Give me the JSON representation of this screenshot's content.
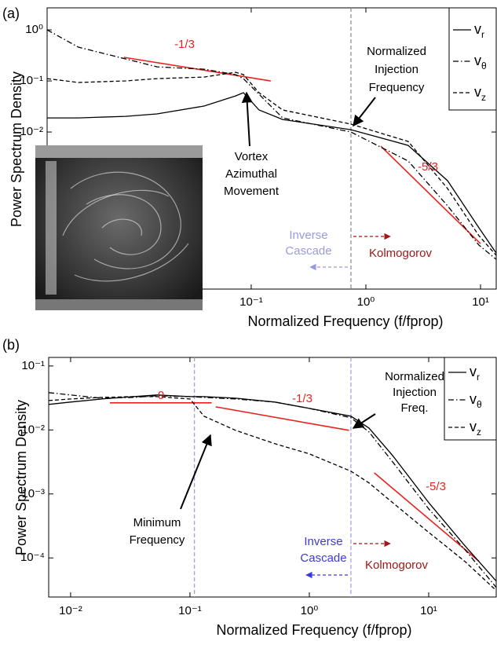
{
  "chart_data": [
    {
      "type": "line",
      "panel_label": "(a)",
      "y_label": "Power Spectrum Density",
      "x_label": "Normalized Frequency (f/fprop)",
      "log_x": true,
      "log_y": true,
      "xlim": [
        0.00166,
        13.7
      ],
      "ylim": [
        8.4e-06,
        2.7
      ],
      "xticks": [
        {
          "value": 0.1,
          "label": "10⁻¹"
        },
        {
          "value": 1,
          "label": "10⁰"
        },
        {
          "value": 10,
          "label": "10¹"
        }
      ],
      "yticks": [
        {
          "value": 1,
          "label": "10⁰"
        },
        {
          "value": 0.1,
          "label": "10⁻¹"
        },
        {
          "value": 0.01,
          "label": "10⁻²"
        }
      ],
      "x": [
        0.00166,
        0.00311,
        0.00802,
        0.0151,
        0.0388,
        0.073,
        0.0855,
        0.117,
        0.188,
        0.741,
        2.34,
        5.16,
        9.68,
        13.7
      ],
      "series": [
        {
          "name": "vr",
          "color": "#000000",
          "linestyle": "solid",
          "values": [
            0.0189,
            0.0189,
            0.0203,
            0.0226,
            0.0322,
            0.051,
            0.0588,
            0.027,
            0.0176,
            0.0111,
            0.00547,
            0.00111,
            0.000133,
            4.27e-05
          ]
        },
        {
          "name": "vθ",
          "color": "#000000",
          "linestyle": "dashdot",
          "values": [
            1,
            0.459,
            0.27,
            0.189,
            0.17,
            0.133,
            0.111,
            0.0548,
            0.0189,
            0.01,
            0.0027,
            0.000358,
            6.09e-05,
            3.22e-05
          ]
        },
        {
          "name": "vz",
          "color": "#000000",
          "linestyle": "dashed",
          "values": [
            0.111,
            0.0932,
            0.1,
            0.111,
            0.119,
            0.148,
            0.133,
            0.0588,
            0.027,
            0.0143,
            0.00653,
            0.00078,
            9.31e-05,
            3.85e-05
          ]
        }
      ],
      "guides": [
        {
          "label": "-1/3",
          "color": "#e8231f",
          "x": [
            0.00777,
            0.148
          ],
          "y": [
            0.29,
            0.1
          ]
        },
        {
          "label": "-5/3",
          "color": "#e8231f",
          "x": [
            1.35,
            10.0
          ],
          "y": [
            0.00528,
            6.5e-05
          ]
        }
      ],
      "reference_lines": [
        {
          "x": 0.741,
          "color": "#888888"
        }
      ],
      "annotations": [
        {
          "lines": [
            "Normalized",
            "Injection",
            "Frequency"
          ],
          "color": "#000000"
        },
        {
          "lines": [
            "Vortex",
            "Azimuthal",
            "Movement"
          ],
          "color": "#000000"
        },
        {
          "lines": [
            "Inverse",
            "Cascade"
          ],
          "color": "#9a9ade"
        },
        {
          "lines": [
            "Kolmogorov"
          ],
          "color": "#a01818"
        }
      ]
    },
    {
      "type": "line",
      "panel_label": "(b)",
      "y_label": "Power Spectrum Density",
      "x_label": "Normalized Frequency (f/fprop)",
      "log_x": true,
      "log_y": true,
      "xlim": [
        0.00655,
        36.8
      ],
      "ylim": [
        2.45e-05,
        0.136
      ],
      "xticks": [
        {
          "value": 0.01,
          "label": "10⁻²"
        },
        {
          "value": 0.1,
          "label": "10⁻¹"
        },
        {
          "value": 1,
          "label": "10⁰"
        },
        {
          "value": 10,
          "label": "10¹"
        }
      ],
      "yticks": [
        {
          "value": 0.1,
          "label": "10⁻¹"
        },
        {
          "value": 0.01,
          "label": "10⁻²"
        },
        {
          "value": 0.001,
          "label": "10⁻³"
        },
        {
          "value": 0.0001,
          "label": "10⁻⁴"
        }
      ],
      "x": [
        0.00655,
        0.01,
        0.0183,
        0.0336,
        0.053,
        0.1,
        0.131,
        0.241,
        0.514,
        1,
        2.23,
        3.16,
        4.98,
        10,
        20.1,
        36.8
      ],
      "series": [
        {
          "name": "vr",
          "color": "#000000",
          "linestyle": "solid",
          "values": [
            0.0251,
            0.0273,
            0.0305,
            0.0332,
            0.0352,
            0.0332,
            0.0332,
            0.0314,
            0.0273,
            0.0217,
            0.0164,
            0.0107,
            0.00399,
            0.000733,
            0.000155,
            4.35e-05
          ]
        },
        {
          "name": "vθ",
          "color": "#000000",
          "linestyle": "dashdot",
          "values": [
            0.0383,
            0.0352,
            0.0314,
            0.0323,
            0.0342,
            0.0332,
            0.0323,
            0.0305,
            0.0273,
            0.0217,
            0.0155,
            0.00932,
            0.00318,
            0.000585,
            0.000135,
            3.47e-05
          ]
        },
        {
          "name": "vz",
          "color": "#000000",
          "linestyle": "dashed",
          "values": [
            0.0288,
            0.0305,
            0.0323,
            0.0332,
            0.0332,
            0.0305,
            0.0164,
            0.00986,
            0.0061,
            0.00423,
            0.00227,
            0.00149,
            0.000733,
            0.000251,
            8.81e-05,
            3.1e-05
          ]
        }
      ],
      "guides": [
        {
          "label": "0",
          "color": "#e8231f",
          "x": [
            0.0213,
            0.152
          ],
          "y": [
            0.0265,
            0.0265
          ]
        },
        {
          "label": "-1/3",
          "color": "#e8231f",
          "x": [
            0.164,
            2.15
          ],
          "y": [
            0.023,
            0.00986
          ]
        },
        {
          "label": "-5/3",
          "color": "#e8231f",
          "x": [
            3.5,
            26.5
          ],
          "y": [
            0.00214,
            8.8e-05
          ]
        }
      ],
      "reference_lines": [
        {
          "x": 0.109,
          "color": "#9a9ade"
        },
        {
          "x": 2.23,
          "color": "#9a9ade"
        }
      ],
      "annotations": [
        {
          "lines": [
            "Normalized",
            "Injection",
            "Freq."
          ],
          "color": "#000000"
        },
        {
          "lines": [
            "Minimum",
            "Frequency"
          ],
          "color": "#000000"
        },
        {
          "lines": [
            "Inverse",
            "Cascade"
          ],
          "color": "#3b3bd8"
        },
        {
          "lines": [
            "Kolmogorov"
          ],
          "color": "#a01818"
        }
      ]
    }
  ]
}
